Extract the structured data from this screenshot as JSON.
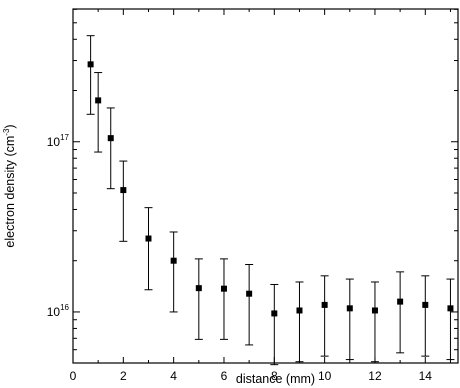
{
  "chart_data": {
    "type": "scatter",
    "xlabel": "distance (mm)",
    "ylabel": {
      "main": "electron density (cm",
      "exp": "-3",
      "close": ")"
    },
    "yscale": "log",
    "xlim": [
      0,
      15.3
    ],
    "ylim_log10": [
      15.7,
      17.78
    ],
    "x_ticks": [
      0,
      2,
      4,
      6,
      8,
      10,
      12,
      14
    ],
    "y_ticks": [
      {
        "value": 1e+17,
        "base": "10",
        "exp": "17"
      },
      {
        "value": 1e+16,
        "base": "10",
        "exp": "16"
      }
    ],
    "grid": false,
    "error_bars": true,
    "points": [
      {
        "x": 0.7,
        "y": 2.85e+17,
        "ylow": 1.45e+17,
        "yhigh": 4.2e+17
      },
      {
        "x": 1.0,
        "y": 1.75e+17,
        "ylow": 8.7e+16,
        "yhigh": 2.55e+17
      },
      {
        "x": 1.5,
        "y": 1.05e+17,
        "ylow": 5.3e+16,
        "yhigh": 1.58e+17
      },
      {
        "x": 2.0,
        "y": 5.2e+16,
        "ylow": 2.6e+16,
        "yhigh": 7.7e+16
      },
      {
        "x": 3.0,
        "y": 2.7e+16,
        "ylow": 1.35e+16,
        "yhigh": 4.1e+16
      },
      {
        "x": 4.0,
        "y": 2e+16,
        "ylow": 1e+16,
        "yhigh": 2.95e+16
      },
      {
        "x": 5.0,
        "y": 1.38e+16,
        "ylow": 6900000000000000.0,
        "yhigh": 2.05e+16
      },
      {
        "x": 6.0,
        "y": 1.37e+16,
        "ylow": 6900000000000000.0,
        "yhigh": 2.05e+16
      },
      {
        "x": 7.0,
        "y": 1.28e+16,
        "ylow": 6400000000000000.0,
        "yhigh": 1.9e+16
      },
      {
        "x": 8.0,
        "y": 9800000000000000.0,
        "ylow": 4900000000000000.0,
        "yhigh": 1.45e+16
      },
      {
        "x": 9.0,
        "y": 1.02e+16,
        "ylow": 5100000000000000.0,
        "yhigh": 1.5e+16
      },
      {
        "x": 10.0,
        "y": 1.1e+16,
        "ylow": 5500000000000000.0,
        "yhigh": 1.63e+16
      },
      {
        "x": 11.0,
        "y": 1.05e+16,
        "ylow": 5250000000000000.0,
        "yhigh": 1.56e+16
      },
      {
        "x": 12.0,
        "y": 1.02e+16,
        "ylow": 5100000000000000.0,
        "yhigh": 1.5e+16
      },
      {
        "x": 13.0,
        "y": 1.15e+16,
        "ylow": 5750000000000000.0,
        "yhigh": 1.72e+16
      },
      {
        "x": 14.0,
        "y": 1.1e+16,
        "ylow": 5500000000000000.0,
        "yhigh": 1.63e+16
      },
      {
        "x": 15.0,
        "y": 1.05e+16,
        "ylow": 5250000000000000.0,
        "yhigh": 1.56e+16
      }
    ]
  }
}
